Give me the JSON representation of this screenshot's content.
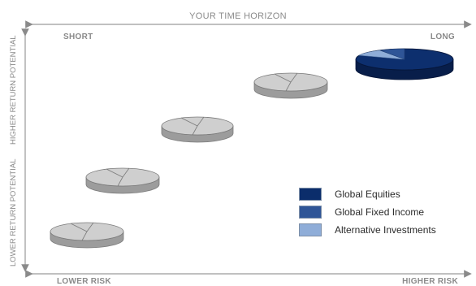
{
  "axes": {
    "top_title": "YOUR TIME HORIZON",
    "top_left": "SHORT",
    "top_right": "LONG",
    "left_upper": "HIGHER RETURN POTENTIAL",
    "left_lower": "LOWER RETURN POTENTIAL",
    "bottom_left": "LOWER RISK",
    "bottom_right": "HIGHER RISK"
  },
  "legend": [
    {
      "label": "Global Equities",
      "color": "#0b2d6b"
    },
    {
      "label": "Global Fixed Income",
      "color": "#2f5597"
    },
    {
      "label": "Alternative Investments",
      "color": "#8fadd8"
    }
  ],
  "portfolios": [
    {
      "shade": "gray"
    },
    {
      "shade": "gray"
    },
    {
      "shade": "gray"
    },
    {
      "shade": "gray"
    },
    {
      "shade": "blue"
    }
  ]
}
